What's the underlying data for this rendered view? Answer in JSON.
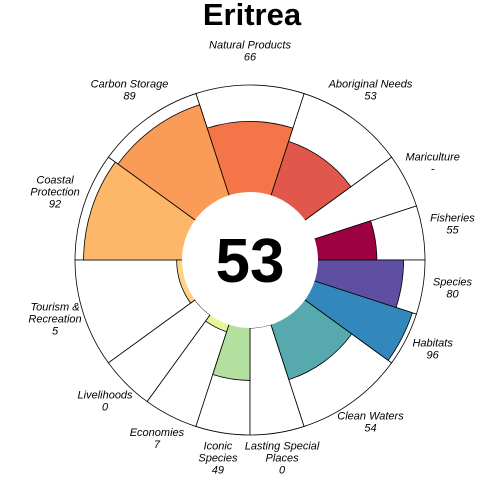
{
  "chart_data": {
    "type": "flower",
    "title": "Eritrea",
    "center_value": 53,
    "ylim": [
      0,
      100
    ],
    "categories": [
      "Fisheries",
      "Mariculture",
      "Aboriginal Needs",
      "Natural Products",
      "Carbon Storage",
      "Coastal\nProtection",
      "Tourism &\nRecreation",
      "Livelihoods",
      "Economies",
      "Iconic\nSpecies",
      "Lasting Special\nPlaces",
      "Clean Waters",
      "Habitats",
      "Species"
    ],
    "values": [
      55,
      null,
      53,
      66,
      89,
      92,
      5,
      0,
      7,
      49,
      0,
      54,
      96,
      80
    ],
    "value_labels": [
      "55",
      "-",
      "53",
      "66",
      "89",
      "92",
      "5",
      "0",
      "7",
      "49",
      "0",
      "54",
      "96",
      "80"
    ],
    "colors": [
      "#9e0142",
      null,
      "#e2574b",
      "#f47548",
      "#fa9b58",
      "#fdb768",
      "#fed384",
      "#fef0a7",
      "#e6f598",
      "#b3e09e",
      "#87cfa4",
      "#56a9ad",
      "#3288bd",
      "#5e4fa2"
    ]
  }
}
